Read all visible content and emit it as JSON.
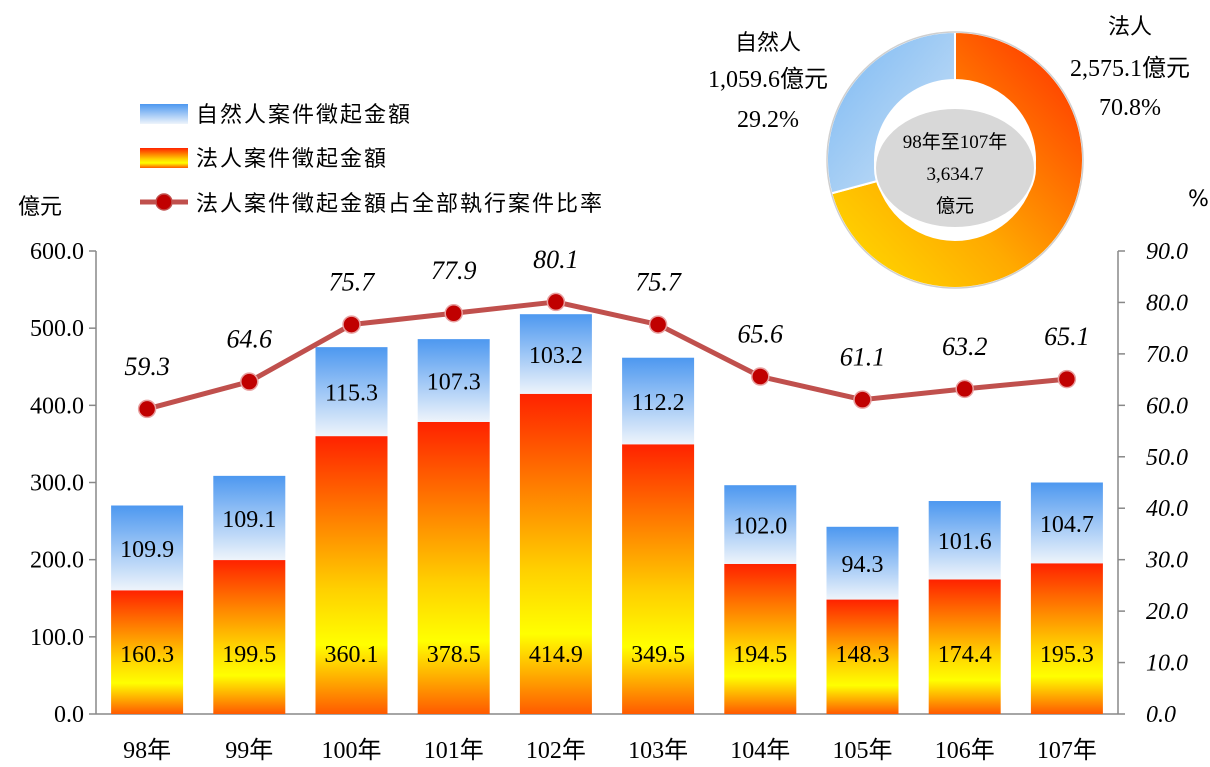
{
  "chart_data": [
    {
      "type": "bar",
      "stacked": true,
      "categories": [
        "98年",
        "99年",
        "100年",
        "101年",
        "102年",
        "103年",
        "104年",
        "105年",
        "106年",
        "107年"
      ],
      "series": [
        {
          "name": "法人案件徵起金額",
          "values": [
            160.3,
            199.5,
            360.1,
            378.5,
            414.9,
            349.5,
            194.5,
            148.3,
            174.4,
            195.3
          ],
          "color": "#ff2a00"
        },
        {
          "name": "自然人案件徵起金額",
          "values": [
            109.9,
            109.1,
            115.3,
            107.3,
            103.2,
            112.2,
            102.0,
            94.3,
            101.6,
            104.7
          ],
          "color": "#5aa0f0"
        },
        {
          "name": "法人案件徵起金額占全部執行案件比率",
          "type": "line",
          "axis": "right",
          "values": [
            59.3,
            64.6,
            75.7,
            77.9,
            80.1,
            75.7,
            65.6,
            61.1,
            63.2,
            65.1
          ],
          "color": "#c0504d"
        }
      ],
      "ylabel": "億元",
      "y2label": "%",
      "ylim": [
        0,
        600
      ],
      "y2lim": [
        0,
        90
      ],
      "yticks": [
        "0.0",
        "100.0",
        "200.0",
        "300.0",
        "400.0",
        "500.0",
        "600.0"
      ],
      "y2ticks": [
        "0.0",
        "10.0",
        "20.0",
        "30.0",
        "40.0",
        "50.0",
        "60.0",
        "70.0",
        "80.0",
        "90.0"
      ],
      "legend": "top-left",
      "grid": false
    },
    {
      "type": "pie",
      "style": "donut",
      "center_label": [
        "98年至107年",
        "3,634.7",
        "億元"
      ],
      "slices": [
        {
          "name": "法人",
          "amount": "2,575.1億元",
          "percent": "70.8%",
          "value": 70.8,
          "color": "#ff4000"
        },
        {
          "name": "自然人",
          "amount": "1,059.6億元",
          "percent": "29.2%",
          "value": 29.2,
          "color": "#6fb0ee"
        }
      ]
    }
  ]
}
